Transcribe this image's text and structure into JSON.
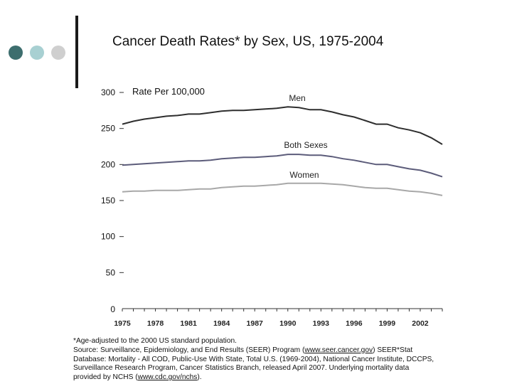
{
  "title": "Cancer Death Rates* by Sex, US, 1975-2004",
  "decor": {
    "dot_colors": [
      "#3d6e6e",
      "#a8d0d2",
      "#cfcfcf"
    ]
  },
  "footnote": {
    "line1": "*Age-adjusted to the 2000 US standard population.",
    "line2": "Source: Surveillance, Epidemiology, and End Results (SEER) Program (",
    "link1": "www.seer.cancer.gov",
    "line3": ") SEER*Stat\nDatabase: Mortality - All COD, Public-Use With State, Total U.S. (1969-2004), National Cancer Institute, DCCPS,\nSurveillance Research Program, Cancer Statistics Branch, released April 2007. Underlying mortality data\nprovided by NCHS (",
    "link2": "www.cdc.gov/nchs",
    "line4": ")."
  },
  "chart_data": {
    "type": "line",
    "title": "Cancer Death Rates* by Sex, US, 1975-2004",
    "ylabel": "Rate Per 100,000",
    "ylim": [
      0,
      300
    ],
    "xlim": [
      1975,
      2004
    ],
    "yticks": [
      0,
      50,
      100,
      150,
      200,
      250,
      300
    ],
    "xtick_labels": [
      "1975",
      "1978",
      "1981",
      "1984",
      "1987",
      "1990",
      "1993",
      "1996",
      "1999",
      "2002"
    ],
    "x": [
      1975,
      1976,
      1977,
      1978,
      1979,
      1980,
      1981,
      1982,
      1983,
      1984,
      1985,
      1986,
      1987,
      1988,
      1989,
      1990,
      1991,
      1992,
      1993,
      1994,
      1995,
      1996,
      1997,
      1998,
      1999,
      2000,
      2001,
      2002,
      2003,
      2004
    ],
    "series": [
      {
        "name": "Men",
        "color": "#2e2e2e",
        "values": [
          256,
          260,
          263,
          265,
          267,
          268,
          270,
          270,
          272,
          274,
          275,
          275,
          276,
          277,
          278,
          280,
          279,
          276,
          276,
          273,
          269,
          266,
          261,
          256,
          256,
          251,
          248,
          244,
          237,
          228
        ]
      },
      {
        "name": "Both Sexes",
        "color": "#5c5c7a",
        "values": [
          199,
          200,
          201,
          202,
          203,
          204,
          205,
          205,
          206,
          208,
          209,
          210,
          210,
          211,
          212,
          214,
          214,
          213,
          213,
          211,
          208,
          206,
          203,
          200,
          200,
          197,
          194,
          192,
          188,
          183
        ]
      },
      {
        "name": "Women",
        "color": "#a8a8a8",
        "values": [
          162,
          163,
          163,
          164,
          164,
          164,
          165,
          166,
          166,
          168,
          169,
          170,
          170,
          171,
          172,
          174,
          174,
          174,
          174,
          173,
          172,
          170,
          168,
          167,
          167,
          165,
          163,
          162,
          160,
          157
        ]
      }
    ],
    "legend": "inline labels"
  }
}
